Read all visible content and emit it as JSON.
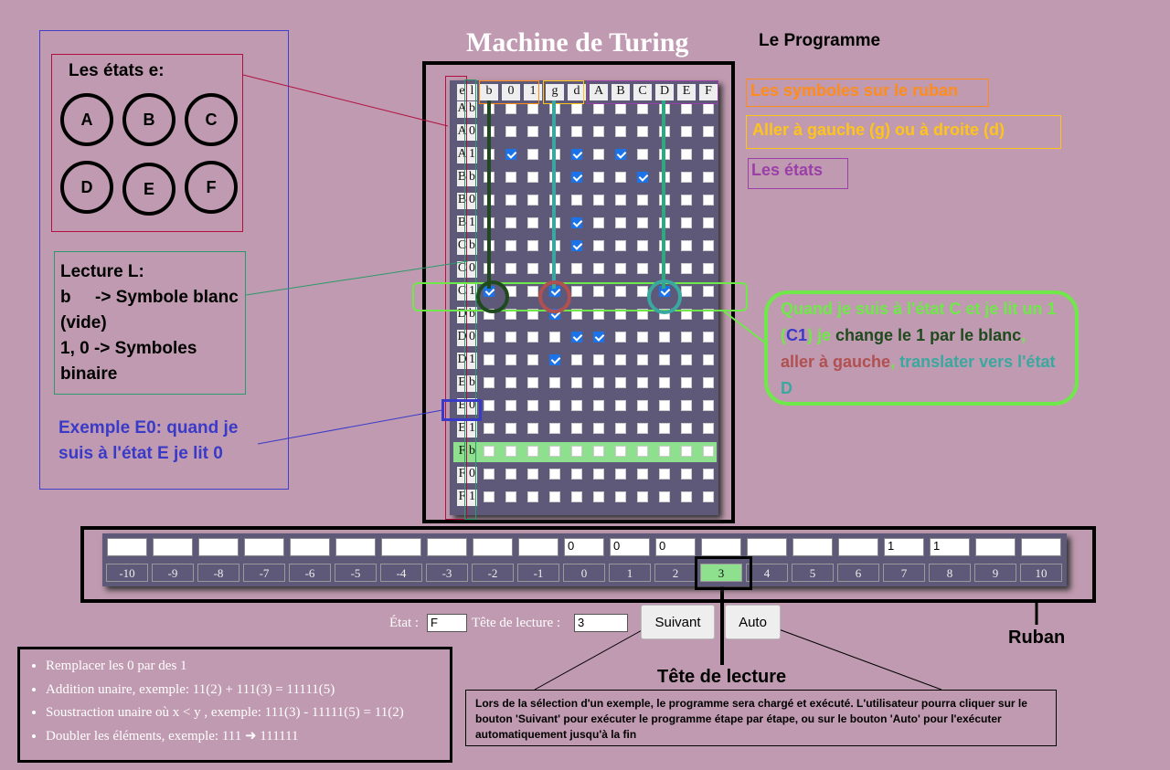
{
  "title": "Machine de Turing",
  "programme_label": "Le Programme",
  "legend": {
    "symbols": "Les symboles sur le ruban",
    "directions": "Aller à gauche (g) ou à droite (d)",
    "states": "Les états"
  },
  "states_box": {
    "title": "Les états e:",
    "states": [
      "A",
      "B",
      "C",
      "D",
      "E",
      "F"
    ]
  },
  "lecture_box": {
    "title": "Lecture L:",
    "line1": "b     -> Symbole blanc (vide)",
    "line2": "1, 0 -> Symboles binaire"
  },
  "example_text": "Exemple E0: quand je suis à l'état E je lit 0",
  "callout": {
    "p1": "Quand je suis à l'état C et je lit un 1 (",
    "c1": "C1",
    "p2": ") je ",
    "p3": "change le 1 par le blanc",
    "p4": ", ",
    "p5": "aller à gauche",
    "p6": ", ",
    "p7": "translater vers l'état D"
  },
  "grid": {
    "headers": [
      "e",
      "l",
      "b",
      "0",
      "1",
      "g",
      "d",
      "A",
      "B",
      "C",
      "D",
      "E",
      "F"
    ],
    "rows": [
      {
        "e": "A",
        "l": "b",
        "checked": [
          12
        ]
      },
      {
        "e": "A",
        "l": "0",
        "checked": []
      },
      {
        "e": "A",
        "l": "1",
        "checked": [
          1,
          4,
          6
        ]
      },
      {
        "e": "B",
        "l": "b",
        "checked": [
          4,
          7
        ]
      },
      {
        "e": "B",
        "l": "0",
        "checked": []
      },
      {
        "e": "B",
        "l": "1",
        "checked": [
          4
        ]
      },
      {
        "e": "C",
        "l": "b",
        "checked": [
          4
        ]
      },
      {
        "e": "C",
        "l": "0",
        "checked": []
      },
      {
        "e": "C",
        "l": "1",
        "checked": [
          0,
          3,
          8
        ]
      },
      {
        "e": "D",
        "l": "b",
        "checked": [
          3
        ]
      },
      {
        "e": "D",
        "l": "0",
        "checked": [
          4,
          5
        ]
      },
      {
        "e": "D",
        "l": "1",
        "checked": [
          3
        ]
      },
      {
        "e": "E",
        "l": "b",
        "checked": []
      },
      {
        "e": "E",
        "l": "0",
        "checked": []
      },
      {
        "e": "E",
        "l": "1",
        "checked": []
      },
      {
        "e": "F",
        "l": "b",
        "checked": []
      },
      {
        "e": "F",
        "l": "0",
        "checked": []
      },
      {
        "e": "F",
        "l": "1",
        "checked": []
      }
    ],
    "highlight_row": 15
  },
  "tape": {
    "values": [
      "",
      "",
      "",
      "",
      "",
      "",
      "",
      "",
      "",
      "",
      "0",
      "0",
      "0",
      "",
      "",
      "",
      "",
      "1",
      "1",
      "",
      ""
    ],
    "indices": [
      "-10",
      "-9",
      "-8",
      "-7",
      "-6",
      "-5",
      "-4",
      "-3",
      "-2",
      "-1",
      "0",
      "1",
      "2",
      "3",
      "4",
      "5",
      "6",
      "7",
      "8",
      "9",
      "10"
    ],
    "head_index": 13,
    "label": "Ruban"
  },
  "controls": {
    "etat_label": "État :",
    "etat_value": "F",
    "tete_label": "Tête de lecture :",
    "tete_value": "3",
    "suivant": "Suivant",
    "auto": "Auto"
  },
  "head_label": "Tête de lecture",
  "examples": [
    "Remplacer les 0 par des 1",
    "Addition unaire, exemple: 11(2) + 111(3) = 11111(5)",
    "Soustraction unaire où x < y , exemple: 111(3) - 11111(5) = 11(2)",
    "Doubler les éléments, exemple: 111 ➜ 111111"
  ],
  "info_text": "Lors de la sélection d'un exemple, le programme sera chargé et exécuté. L'utilisateur pourra cliquer sur le bouton 'Suivant' pour exécuter le programme étape par étape, ou sur le bouton 'Auto' pour l'exécuter automatiquement jusqu'à la fin",
  "colors": {
    "bg": "#c09ab0",
    "grid": "#5e5978",
    "orange": "#ff8c1a",
    "yellow": "#ffc41a",
    "purple": "#9b3fa8",
    "green": "#6fe84a",
    "blue": "#3a3ac8",
    "teal": "#3aa8a0",
    "darkgreen": "#1e4a1e",
    "red": "#b05050"
  }
}
